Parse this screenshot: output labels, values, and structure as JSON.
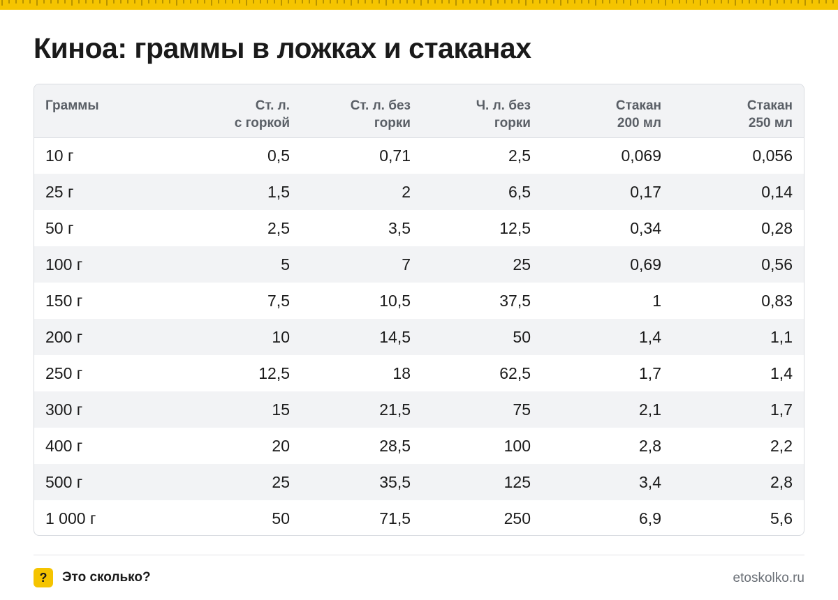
{
  "colors": {
    "accent": "#f5c400",
    "header_bg": "#f2f3f5",
    "border": "#d8dbe0"
  },
  "title": "Киноа: граммы в ложках и стаканах",
  "table": {
    "headers": [
      {
        "line1": "Граммы",
        "line2": ""
      },
      {
        "line1": "Ст. л.",
        "line2": "с горкой"
      },
      {
        "line1": "Ст. л. без",
        "line2": "горки"
      },
      {
        "line1": "Ч. л. без",
        "line2": "горки"
      },
      {
        "line1": "Стакан",
        "line2": "200 мл"
      },
      {
        "line1": "Стакан",
        "line2": "250 мл"
      }
    ],
    "rows": [
      [
        "10 г",
        "0,5",
        "0,71",
        "2,5",
        "0,069",
        "0,056"
      ],
      [
        "25 г",
        "1,5",
        "2",
        "6,5",
        "0,17",
        "0,14"
      ],
      [
        "50 г",
        "2,5",
        "3,5",
        "12,5",
        "0,34",
        "0,28"
      ],
      [
        "100 г",
        "5",
        "7",
        "25",
        "0,69",
        "0,56"
      ],
      [
        "150 г",
        "7,5",
        "10,5",
        "37,5",
        "1",
        "0,83"
      ],
      [
        "200 г",
        "10",
        "14,5",
        "50",
        "1,4",
        "1,1"
      ],
      [
        "250 г",
        "12,5",
        "18",
        "62,5",
        "1,7",
        "1,4"
      ],
      [
        "300 г",
        "15",
        "21,5",
        "75",
        "2,1",
        "1,7"
      ],
      [
        "400 г",
        "20",
        "28,5",
        "100",
        "2,8",
        "2,2"
      ],
      [
        "500 г",
        "25",
        "35,5",
        "125",
        "3,4",
        "2,8"
      ],
      [
        "1 000 г",
        "50",
        "71,5",
        "250",
        "6,9",
        "5,6"
      ]
    ]
  },
  "footer": {
    "badge": "?",
    "badge_icon": "question-mark-icon",
    "brand": "Это сколько?",
    "site": "etoskolko.ru"
  }
}
